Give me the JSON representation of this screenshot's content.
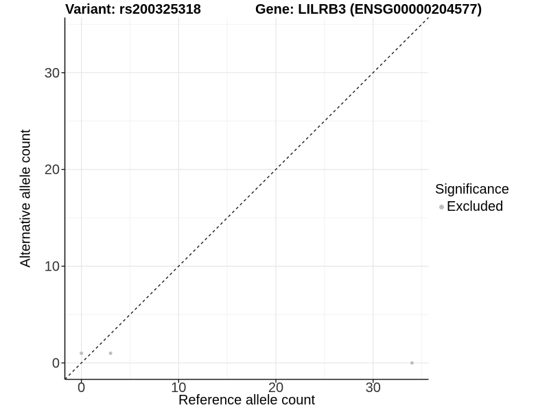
{
  "header": {
    "variant_title": "Variant: rs200325318",
    "gene_title": "Gene: LILRB3 (ENSG00000204577)"
  },
  "legend": {
    "title": "Significance",
    "items": [
      {
        "label": "Excluded",
        "color": "#bebebe",
        "marker": "dot"
      }
    ]
  },
  "chart_data": {
    "type": "scatter",
    "xlabel": "Reference allele count",
    "ylabel": "Alternative allele count",
    "xlim": [
      -1.7,
      35.7
    ],
    "ylim": [
      -1.7,
      35.7
    ],
    "x_ticks": [
      0,
      10,
      20,
      30
    ],
    "y_ticks": [
      0,
      10,
      20,
      30
    ],
    "x_minor_ticks": [
      5,
      15,
      25,
      35
    ],
    "y_minor_ticks": [
      5,
      15,
      25,
      35
    ],
    "grid": "major+minor",
    "legend_position": "right-center",
    "series": [
      {
        "name": "Excluded",
        "color": "#bebebe",
        "points": [
          {
            "x": 0,
            "y": 1
          },
          {
            "x": 3,
            "y": 1
          },
          {
            "x": 34,
            "y": 0
          }
        ]
      }
    ],
    "reference_line": {
      "equation": "y = x",
      "style": "dashed",
      "color": "#1a1a1a"
    },
    "colors": {
      "background": "#ffffff",
      "major_grid": "#e6e6e6",
      "minor_grid": "#f2f2f2",
      "axis": "#1a1a1a",
      "tick_label": "#333333",
      "point": "#bebebe"
    }
  }
}
